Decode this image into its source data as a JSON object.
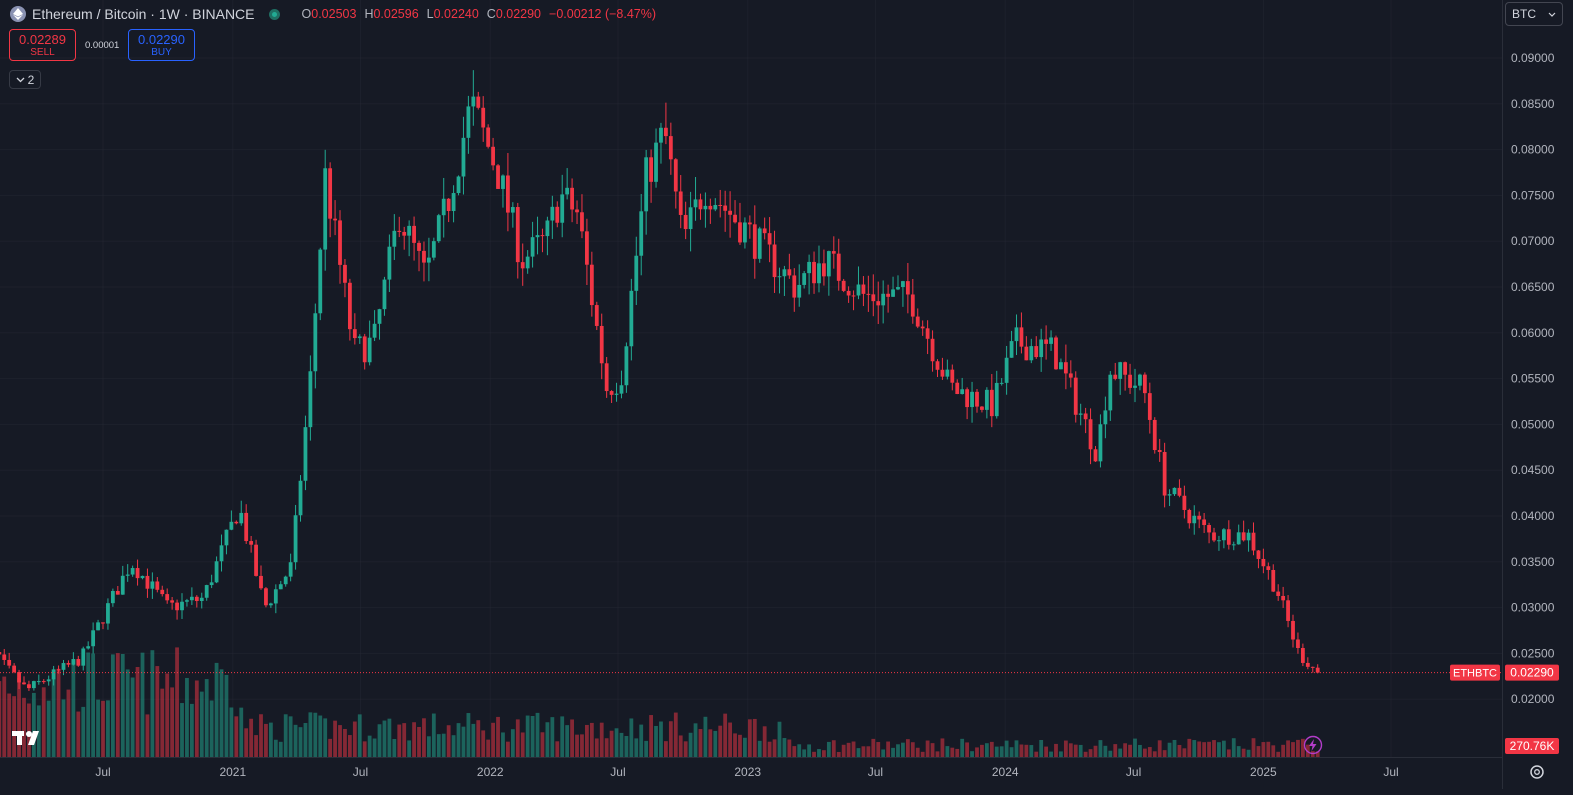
{
  "header": {
    "title": "Ethereum / Bitcoin · 1W · BINANCE",
    "open_label": "O",
    "open": "0.02503",
    "high_label": "H",
    "high": "0.02596",
    "low_label": "L",
    "low": "0.02240",
    "close_label": "C",
    "close": "0.02290",
    "change": "−0.00212 (−8.47%)"
  },
  "trade_panel": {
    "sell_price": "0.02289",
    "sell_label": "SELL",
    "spread": "0.00001",
    "buy_price": "0.02290",
    "buy_label": "BUY"
  },
  "indicators_toggle": {
    "count": "2"
  },
  "currency_select": {
    "value": "BTC"
  },
  "icons": {
    "logo": "tradingview-logo-icon",
    "settings": "gear-icon",
    "alert": "lightning-icon"
  },
  "colors": {
    "up": "#22ab94",
    "down": "#f23645",
    "background": "#161a25",
    "grid": "#2a2e39"
  },
  "chart_data": {
    "type": "candlestick",
    "symbol": "ETHBTC",
    "interval": "1W",
    "exchange": "BINANCE",
    "ylim": [
      0.0166,
      0.0917
    ],
    "y_ticks": [
      "0.09000",
      "0.08500",
      "0.08000",
      "0.07500",
      "0.07000",
      "0.06500",
      "0.06000",
      "0.05500",
      "0.05000",
      "0.04500",
      "0.04000",
      "0.03500",
      "0.03000",
      "0.02500",
      "0.02000"
    ],
    "y_tick_values": [
      0.09,
      0.085,
      0.08,
      0.075,
      0.07,
      0.065,
      0.06,
      0.055,
      0.05,
      0.045,
      0.04,
      0.035,
      0.03,
      0.025,
      0.02
    ],
    "x_ticks": [
      "Jul",
      "2021",
      "Jul",
      "2022",
      "Jul",
      "2023",
      "Jul",
      "2024",
      "Jul",
      "2025",
      "Jul"
    ],
    "x_tick_dates": [
      "2020-07-01",
      "2021-01-01",
      "2021-07-01",
      "2022-01-01",
      "2022-07-01",
      "2023-01-01",
      "2023-07-01",
      "2024-01-01",
      "2024-07-01",
      "2025-01-01",
      "2025-07-01"
    ],
    "last_price_label": "ETHBTC",
    "last_price": "0.02290",
    "last_price_value": 0.0229,
    "volume_label": "270.76K",
    "key_points": [
      {
        "date": "2020-01-01",
        "close": 0.0272
      },
      {
        "date": "2020-03-15",
        "close": 0.021
      },
      {
        "date": "2020-06-01",
        "close": 0.0245
      },
      {
        "date": "2020-08-10",
        "close": 0.035
      },
      {
        "date": "2020-10-01",
        "close": 0.03
      },
      {
        "date": "2020-11-20",
        "close": 0.031
      },
      {
        "date": "2021-01-10",
        "close": 0.041
      },
      {
        "date": "2021-02-15",
        "close": 0.03
      },
      {
        "date": "2021-03-25",
        "close": 0.0345
      },
      {
        "date": "2021-04-20",
        "close": 0.054
      },
      {
        "date": "2021-05-12",
        "close": 0.077
      },
      {
        "date": "2021-06-22",
        "close": 0.058
      },
      {
        "date": "2021-07-20",
        "close": 0.059
      },
      {
        "date": "2021-08-25",
        "close": 0.073
      },
      {
        "date": "2021-10-01",
        "close": 0.066
      },
      {
        "date": "2021-11-01",
        "close": 0.074
      },
      {
        "date": "2021-12-05",
        "close": 0.085
      },
      {
        "date": "2022-01-10",
        "close": 0.078
      },
      {
        "date": "2022-02-15",
        "close": 0.068
      },
      {
        "date": "2022-03-20",
        "close": 0.07
      },
      {
        "date": "2022-04-10",
        "close": 0.075
      },
      {
        "date": "2022-05-05",
        "close": 0.073
      },
      {
        "date": "2022-06-15",
        "close": 0.054
      },
      {
        "date": "2022-07-05",
        "close": 0.055
      },
      {
        "date": "2022-08-10",
        "close": 0.077
      },
      {
        "date": "2022-09-05",
        "close": 0.082
      },
      {
        "date": "2022-10-01",
        "close": 0.07
      },
      {
        "date": "2022-11-01",
        "close": 0.076
      },
      {
        "date": "2023-01-01",
        "close": 0.071
      },
      {
        "date": "2023-03-10",
        "close": 0.065
      },
      {
        "date": "2023-04-20",
        "close": 0.068
      },
      {
        "date": "2023-06-15",
        "close": 0.064
      },
      {
        "date": "2023-08-20",
        "close": 0.064
      },
      {
        "date": "2023-10-15",
        "close": 0.054
      },
      {
        "date": "2023-12-15",
        "close": 0.052
      },
      {
        "date": "2024-01-15",
        "close": 0.059
      },
      {
        "date": "2024-03-10",
        "close": 0.058
      },
      {
        "date": "2024-05-10",
        "close": 0.047
      },
      {
        "date": "2024-05-28",
        "close": 0.056
      },
      {
        "date": "2024-07-15",
        "close": 0.054
      },
      {
        "date": "2024-08-15",
        "close": 0.043
      },
      {
        "date": "2024-10-15",
        "close": 0.038
      },
      {
        "date": "2024-12-10",
        "close": 0.038
      },
      {
        "date": "2025-01-20",
        "close": 0.032
      },
      {
        "date": "2025-02-20",
        "close": 0.025
      },
      {
        "date": "2025-03-20",
        "close": 0.0229
      }
    ]
  }
}
